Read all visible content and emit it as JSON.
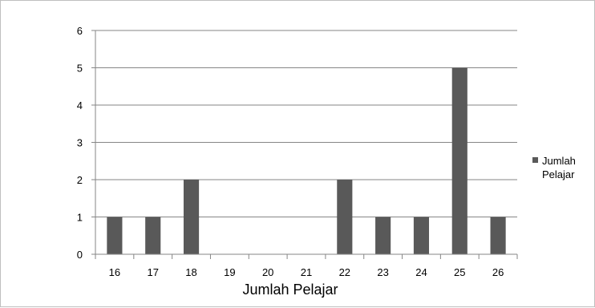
{
  "chart_data": {
    "type": "bar",
    "categories": [
      "16",
      "17",
      "18",
      "19",
      "20",
      "21",
      "22",
      "23",
      "24",
      "25",
      "26"
    ],
    "series": [
      {
        "name": "Jumlah Pelajar",
        "values": [
          1,
          1,
          2,
          0,
          0,
          0,
          2,
          1,
          1,
          5,
          1
        ],
        "color": "#595959"
      }
    ],
    "title": "",
    "xlabel": "Jumlah Pelajar",
    "ylabel": "",
    "ylim": [
      0,
      6
    ],
    "yticks": [
      0,
      1,
      2,
      3,
      4,
      5,
      6
    ],
    "grid": true,
    "legend_position": "right",
    "legend_lines": [
      "Jumlah",
      "Pelajar"
    ]
  }
}
